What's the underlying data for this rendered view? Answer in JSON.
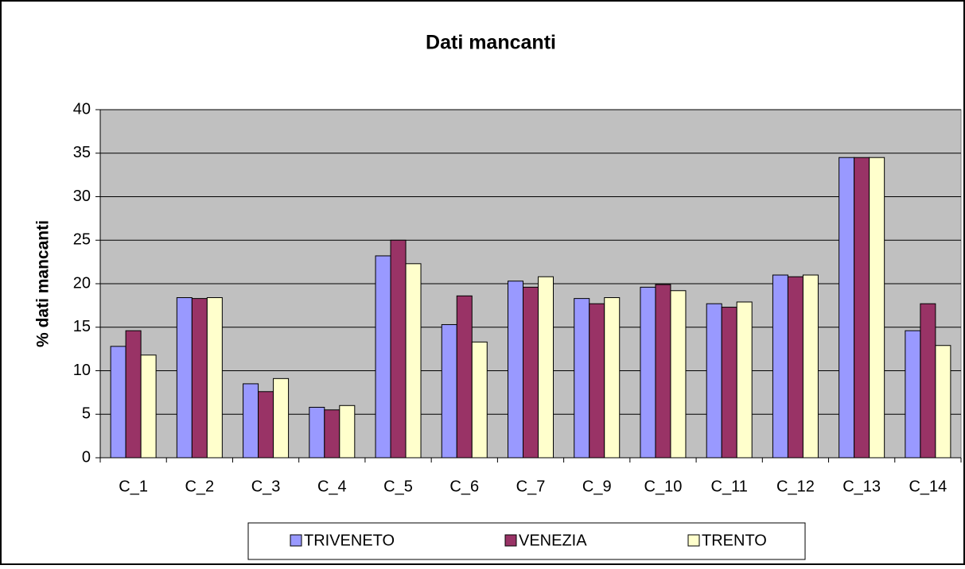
{
  "chart_data": {
    "type": "bar",
    "title": "Dati mancanti",
    "y_label": "% dati mancanti",
    "categories": [
      "C_1",
      "C_2",
      "C_3",
      "C_4",
      "C_5",
      "C_6",
      "C_7",
      "C_9",
      "C_10",
      "C_11",
      "C_12",
      "C_13",
      "C_14"
    ],
    "series": [
      {
        "name": "TRIVENETO",
        "color": "#9999ff",
        "values": [
          12.8,
          18.4,
          8.5,
          5.8,
          23.2,
          15.3,
          20.3,
          18.3,
          19.6,
          17.7,
          21.0,
          34.5,
          14.6
        ]
      },
      {
        "name": "VENEZIA",
        "color": "#993366",
        "values": [
          14.6,
          18.3,
          7.6,
          5.5,
          25.0,
          18.6,
          19.6,
          17.7,
          19.9,
          17.3,
          20.8,
          34.5,
          17.7
        ]
      },
      {
        "name": "TRENTO",
        "color": "#ffffcc",
        "values": [
          11.8,
          18.4,
          9.1,
          6.0,
          22.3,
          13.3,
          20.8,
          18.4,
          19.2,
          17.9,
          21.0,
          34.5,
          12.9
        ]
      }
    ],
    "ylim": [
      0,
      40
    ],
    "yticks": [
      0,
      5,
      10,
      15,
      20,
      25,
      30,
      35,
      40
    ],
    "grid": true,
    "legend": "bottom"
  }
}
